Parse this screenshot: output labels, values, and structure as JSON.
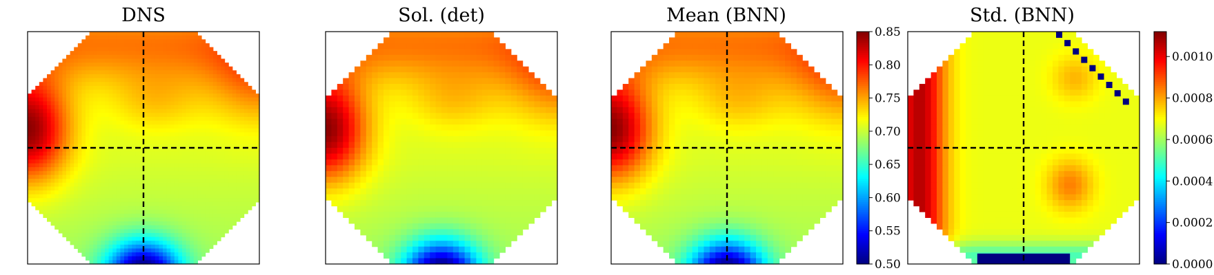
{
  "chart_data": [
    {
      "type": "heatmap",
      "title": "DNS",
      "field": "dns",
      "mask": "smooth",
      "dashed_crosshair": true,
      "colormap": "jet",
      "vmin": 0.5,
      "vmax": 0.85
    },
    {
      "type": "heatmap",
      "title": "Sol. (det)",
      "field": "dns",
      "mask": "stepped",
      "dashed_crosshair": false,
      "colormap": "jet",
      "vmin": 0.5,
      "vmax": 0.85
    },
    {
      "type": "heatmap",
      "title": "Mean (BNN)",
      "field": "dns",
      "mask": "stepped",
      "dashed_crosshair": true,
      "colormap": "jet",
      "vmin": 0.5,
      "vmax": 0.85,
      "colorbar": {
        "ticks": [
          0.5,
          0.55,
          0.6,
          0.65,
          0.7,
          0.75,
          0.8,
          0.85
        ],
        "tick_labels": [
          "0.50",
          "0.55",
          "0.60",
          "0.65",
          "0.70",
          "0.75",
          "0.80",
          "0.85"
        ]
      }
    },
    {
      "type": "heatmap",
      "title": "Std. (BNN)",
      "field": "std",
      "mask": "stepped",
      "dashed_crosshair": true,
      "colormap": "jet",
      "vmin": 0.0,
      "vmax": 0.00112,
      "colorbar": {
        "ticks": [
          0.0,
          0.0002,
          0.0004,
          0.0006,
          0.0008,
          0.001
        ],
        "tick_labels": [
          "0.0000",
          "0.0002",
          "0.0004",
          "0.0006",
          "0.0008",
          "0.0010"
        ]
      }
    }
  ]
}
